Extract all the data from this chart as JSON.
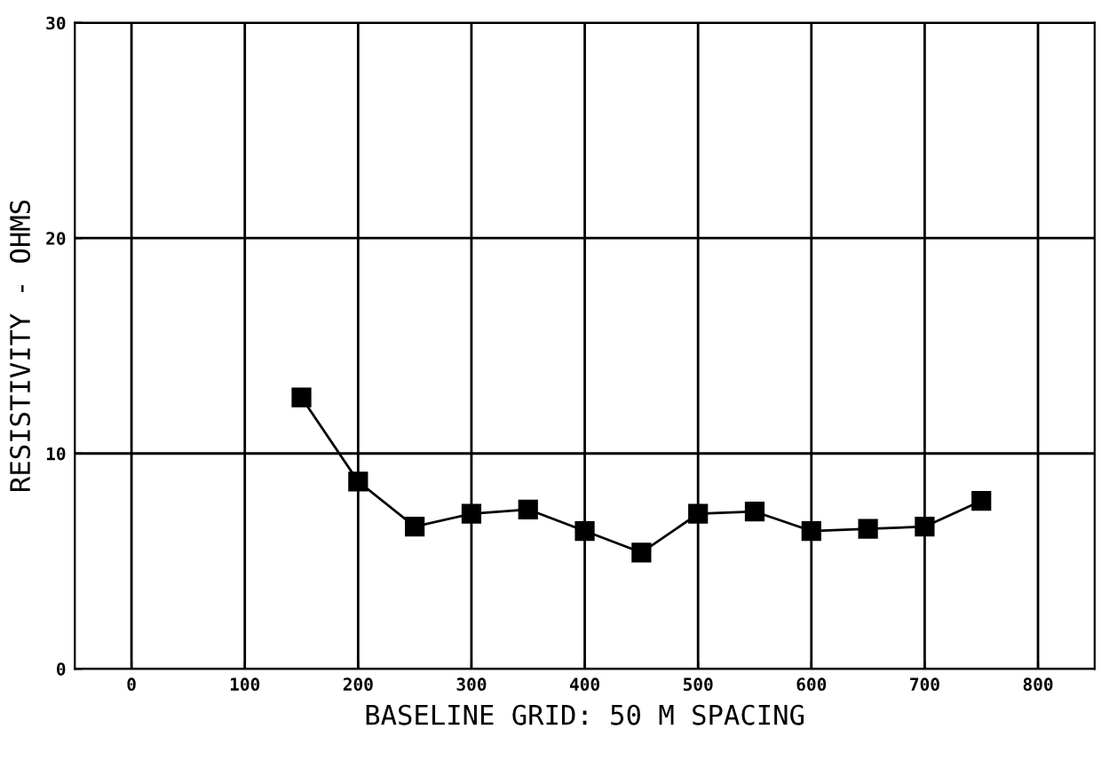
{
  "chart_data": {
    "type": "line",
    "xlabel": "BASELINE GRID: 50 M SPACING",
    "ylabel": "RESISTIVITY - OHMS",
    "x": [
      150,
      200,
      250,
      300,
      350,
      400,
      450,
      500,
      550,
      600,
      650,
      700,
      750
    ],
    "series": [
      {
        "color": "#000000",
        "values": [
          12.6,
          8.7,
          6.6,
          7.2,
          7.4,
          6.4,
          5.4,
          7.2,
          7.3,
          6.4,
          6.5,
          6.6,
          7.8
        ]
      }
    ],
    "xlim": [
      -50,
      850
    ],
    "xticks": [
      0,
      100,
      200,
      300,
      400,
      500,
      600,
      700,
      800
    ],
    "ylim": [
      0,
      30
    ],
    "yticks": [
      0,
      10,
      20,
      30
    ],
    "grid": true,
    "marker": "square",
    "line_style": "solid"
  }
}
